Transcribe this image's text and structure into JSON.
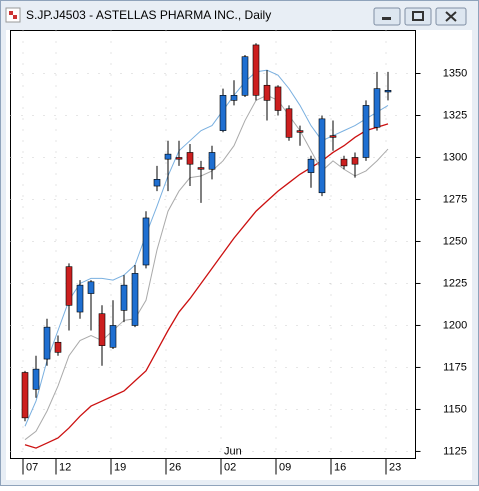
{
  "chart_data": {
    "type": "candlestick",
    "title": "S.JP.J4503 - ASTELLAS PHARMA INC., Daily",
    "categories": [
      "07",
      null,
      null,
      "12",
      null,
      null,
      null,
      null,
      "19",
      null,
      null,
      null,
      null,
      "26",
      null,
      null,
      null,
      null,
      "02",
      null,
      null,
      null,
      null,
      "09",
      null,
      null,
      null,
      null,
      "16",
      null,
      null,
      null,
      null,
      "23"
    ],
    "month_label": "Jun",
    "month_index": 18,
    "open": [
      1172,
      1162,
      1180,
      1190,
      1235,
      1208,
      1219,
      1207,
      1187,
      1209,
      1200,
      1236,
      1283,
      1299,
      1300,
      1303,
      1294,
      1293,
      1316,
      1334,
      1337,
      1367,
      1343,
      1342,
      1329,
      1316,
      1291,
      1279,
      1313,
      1299,
      1300,
      1300,
      1318,
      1339
    ],
    "high": [
      1173,
      1182,
      1204,
      1194,
      1237,
      1227,
      1227,
      1212,
      1215,
      1230,
      1236,
      1268,
      1295,
      1310,
      1310,
      1308,
      1298,
      1307,
      1341,
      1346,
      1361,
      1368,
      1352,
      1343,
      1331,
      1319,
      1301,
      1325,
      1322,
      1301,
      1303,
      1334,
      1351,
      1351
    ],
    "low": [
      1143,
      1157,
      1176,
      1182,
      1197,
      1204,
      1197,
      1176,
      1186,
      1202,
      1199,
      1234,
      1280,
      1280,
      1295,
      1283,
      1273,
      1287,
      1315,
      1331,
      1336,
      1334,
      1322,
      1325,
      1310,
      1307,
      1282,
      1277,
      1304,
      1293,
      1288,
      1298,
      1316,
      1334
    ],
    "close": [
      1145,
      1174,
      1199,
      1184,
      1212,
      1224,
      1226,
      1188,
      1200,
      1224,
      1231,
      1264,
      1287,
      1302,
      1299,
      1296,
      1293,
      1303,
      1337,
      1337,
      1360,
      1337,
      1334,
      1328,
      1312,
      1315,
      1299,
      1323,
      1312,
      1295,
      1296,
      1331,
      1341,
      1340
    ],
    "up_color": "#1f6fd1",
    "down_color": "#cc1f1f",
    "lines": [
      {
        "color": "#cc1111",
        "values": [
          1129,
          1127,
          1130,
          1133,
          1139,
          1146,
          1152,
          1155,
          1158,
          1161,
          1167,
          1173,
          1185,
          1197,
          1208,
          1216,
          1225,
          1234,
          1243,
          1252,
          1260,
          1268,
          1274,
          1280,
          1285,
          1290,
          1294,
          1298,
          1303,
          1307,
          1312,
          1316,
          1318,
          1320
        ]
      },
      {
        "color": "#7ab0e0",
        "values": [
          1140,
          1155,
          1179,
          1197,
          1215,
          1225,
          1228,
          1228,
          1227,
          1230,
          1236,
          1254,
          1271,
          1289,
          1304,
          1310,
          1316,
          1319,
          1328,
          1337,
          1345,
          1351,
          1352,
          1349,
          1341,
          1331,
          1319,
          1310,
          1313,
          1316,
          1319,
          1323,
          1327,
          1331
        ]
      },
      {
        "color": "#aaaaaa",
        "values": [
          1132,
          1137,
          1149,
          1164,
          1182,
          1191,
          1194,
          1191,
          1197,
          1203,
          1204,
          1215,
          1245,
          1268,
          1280,
          1288,
          1289,
          1292,
          1298,
          1307,
          1322,
          1334,
          1337,
          1334,
          1325,
          1316,
          1304,
          1292,
          1298,
          1293,
          1289,
          1292,
          1298,
          1305
        ]
      }
    ],
    "ylim": [
      1120.8,
      1375.6
    ],
    "yticks": [
      1125,
      1150,
      1175,
      1200,
      1225,
      1250,
      1275,
      1300,
      1325,
      1350
    ],
    "grid": true
  }
}
